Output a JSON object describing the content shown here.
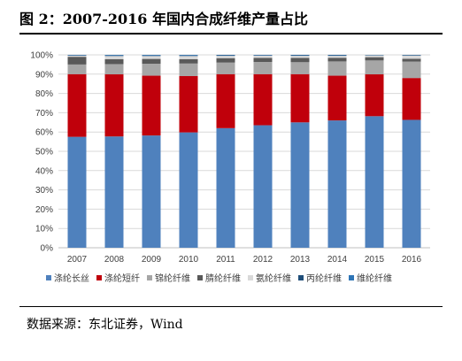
{
  "figure": {
    "title": "图 2：2007-2016 年国内合成纤维产量占比",
    "source": "数据来源：东北证券，Wind"
  },
  "chart_data": {
    "type": "bar",
    "stacked": true,
    "categories": [
      "2007",
      "2008",
      "2009",
      "2010",
      "2011",
      "2012",
      "2013",
      "2014",
      "2015",
      "2016"
    ],
    "ylim": [
      0,
      100
    ],
    "yticks": [
      "0%",
      "10%",
      "20%",
      "30%",
      "40%",
      "50%",
      "60%",
      "70%",
      "80%",
      "90%",
      "100%"
    ],
    "grid": true,
    "legend": "bottom",
    "series": [
      {
        "name": "涤纶长丝",
        "color": "#4f81bd",
        "values": [
          57.5,
          57.7,
          58.2,
          59.8,
          62.0,
          63.5,
          65.0,
          66.0,
          68.2,
          66.3
        ]
      },
      {
        "name": "涤纶短纤",
        "color": "#c0000b",
        "values": [
          32.5,
          32.2,
          31.0,
          29.2,
          28.0,
          26.5,
          25.0,
          23.2,
          21.7,
          21.7
        ]
      },
      {
        "name": "锦纶纤维",
        "color": "#a6a6a6",
        "values": [
          5.0,
          5.3,
          6.2,
          6.5,
          6.0,
          6.3,
          6.2,
          7.4,
          7.2,
          8.5
        ]
      },
      {
        "name": "腈纶纤维",
        "color": "#595959",
        "values": [
          4.0,
          2.6,
          2.5,
          2.3,
          2.3,
          2.1,
          2.2,
          1.9,
          1.7,
          1.5
        ]
      },
      {
        "name": "氨纶纤维",
        "color": "#d9d9d9",
        "values": [
          0.6,
          1.6,
          1.5,
          1.6,
          1.2,
          1.2,
          1.1,
          1.0,
          0.9,
          1.6
        ]
      },
      {
        "name": "丙纶纤维",
        "color": "#1f4e79",
        "values": [
          0.2,
          0.3,
          0.3,
          0.3,
          0.3,
          0.2,
          0.3,
          0.3,
          0.2,
          0.3
        ]
      },
      {
        "name": "维纶纤维",
        "color": "#2e75b6",
        "values": [
          0.2,
          0.3,
          0.3,
          0.3,
          0.2,
          0.2,
          0.2,
          0.2,
          0.1,
          0.1
        ]
      }
    ]
  }
}
